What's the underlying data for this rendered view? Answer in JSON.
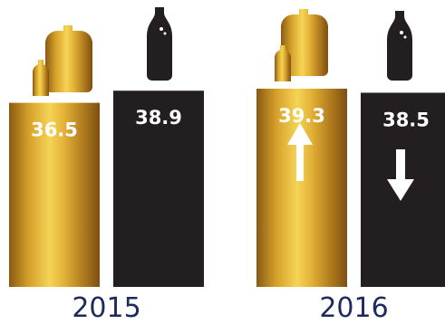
{
  "chart_data": {
    "type": "bar",
    "categories": [
      "2015",
      "2016"
    ],
    "series": [
      {
        "values": [
          36.5,
          39.3
        ],
        "color": "#c9921c",
        "icon": "large-and-small-water-bottles-icon"
      },
      {
        "values": [
          38.9,
          38.5
        ],
        "color": "#231f20",
        "icon": "soda-bottle-icon"
      }
    ],
    "trend_2016": [
      "up-arrow-icon",
      "down-arrow-icon"
    ],
    "title": "",
    "xlabel": "",
    "ylabel": "",
    "grid": false,
    "legend": "none"
  }
}
